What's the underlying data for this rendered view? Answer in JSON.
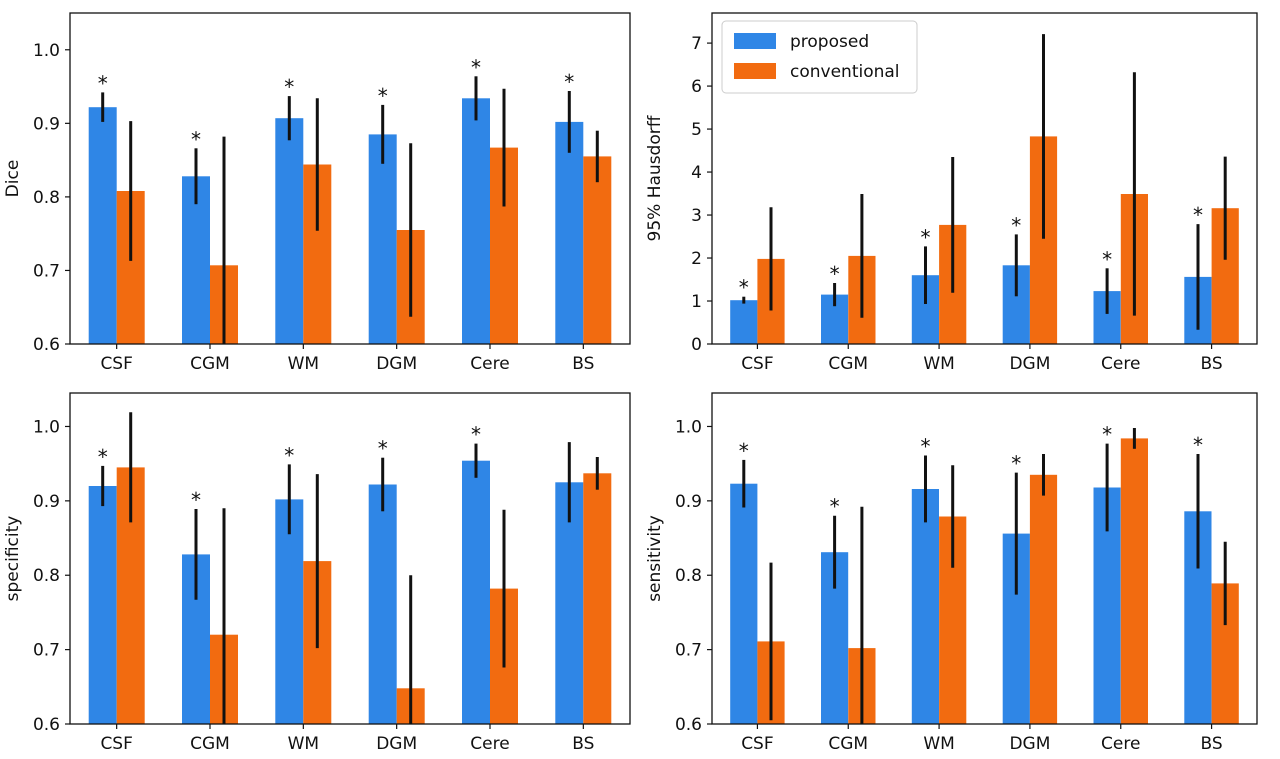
{
  "colors": {
    "proposed": "#2f86e6",
    "conventional": "#f26b10",
    "errorbar": "#111111",
    "frame": "#111111"
  },
  "legend": {
    "placement": "upper-left",
    "entries": [
      "proposed",
      "conventional"
    ]
  },
  "chart_data": [
    {
      "type": "bar",
      "title": "",
      "xlabel": "",
      "ylabel": "Dice",
      "ylim": [
        0.6,
        1.05
      ],
      "yticks": [
        0.6,
        0.7,
        0.8,
        0.9,
        1.0
      ],
      "ytick_labels": [
        "0.6",
        "0.7",
        "0.8",
        "0.9",
        "1.0"
      ],
      "categories": [
        "CSF",
        "CGM",
        "WM",
        "DGM",
        "Cere",
        "BS"
      ],
      "series": [
        {
          "name": "proposed",
          "values": [
            0.922,
            0.828,
            0.907,
            0.885,
            0.934,
            0.902
          ],
          "errors": [
            0.02,
            0.038,
            0.03,
            0.04,
            0.03,
            0.042
          ]
        },
        {
          "name": "conventional",
          "values": [
            0.808,
            0.707,
            0.844,
            0.755,
            0.867,
            0.855
          ],
          "errors": [
            0.095,
            0.175,
            0.09,
            0.118,
            0.08,
            0.035
          ]
        }
      ],
      "significant": [
        true,
        true,
        true,
        true,
        true,
        true
      ],
      "grid": false
    },
    {
      "type": "bar",
      "title": "",
      "xlabel": "",
      "ylabel": "95% Hausdorff",
      "ylim": [
        0,
        7.7
      ],
      "yticks": [
        0,
        1,
        2,
        3,
        4,
        5,
        6,
        7
      ],
      "ytick_labels": [
        "0",
        "1",
        "2",
        "3",
        "4",
        "5",
        "6",
        "7"
      ],
      "categories": [
        "CSF",
        "CGM",
        "WM",
        "DGM",
        "Cere",
        "BS"
      ],
      "series": [
        {
          "name": "proposed",
          "values": [
            1.02,
            1.15,
            1.6,
            1.83,
            1.23,
            1.56
          ],
          "errors": [
            0.08,
            0.27,
            0.67,
            0.72,
            0.53,
            1.23
          ]
        },
        {
          "name": "conventional",
          "values": [
            1.98,
            2.05,
            2.77,
            4.83,
            3.49,
            3.16
          ],
          "errors": [
            1.2,
            1.44,
            1.58,
            2.38,
            2.83,
            1.2
          ]
        }
      ],
      "significant": [
        true,
        true,
        true,
        true,
        true,
        true
      ],
      "grid": false
    },
    {
      "type": "bar",
      "title": "",
      "xlabel": "",
      "ylabel": "specificity",
      "ylim": [
        0.6,
        1.045
      ],
      "yticks": [
        0.6,
        0.7,
        0.8,
        0.9,
        1.0
      ],
      "ytick_labels": [
        "0.6",
        "0.7",
        "0.8",
        "0.9",
        "1.0"
      ],
      "categories": [
        "CSF",
        "CGM",
        "WM",
        "DGM",
        "Cere",
        "BS"
      ],
      "series": [
        {
          "name": "proposed",
          "values": [
            0.92,
            0.828,
            0.902,
            0.922,
            0.954,
            0.925
          ],
          "errors": [
            0.027,
            0.061,
            0.047,
            0.036,
            0.023,
            0.054
          ]
        },
        {
          "name": "conventional",
          "values": [
            0.945,
            0.72,
            0.819,
            0.648,
            0.782,
            0.937
          ],
          "errors": [
            0.074,
            0.17,
            0.117,
            0.152,
            0.106,
            0.022
          ]
        }
      ],
      "significant": [
        true,
        true,
        true,
        true,
        true,
        false
      ],
      "grid": false
    },
    {
      "type": "bar",
      "title": "",
      "xlabel": "",
      "ylabel": "sensitivity",
      "ylim": [
        0.6,
        1.045
      ],
      "yticks": [
        0.6,
        0.7,
        0.8,
        0.9,
        1.0
      ],
      "ytick_labels": [
        "0.6",
        "0.7",
        "0.8",
        "0.9",
        "1.0"
      ],
      "categories": [
        "CSF",
        "CGM",
        "WM",
        "DGM",
        "Cere",
        "BS"
      ],
      "series": [
        {
          "name": "proposed",
          "values": [
            0.923,
            0.831,
            0.916,
            0.856,
            0.918,
            0.886
          ],
          "errors": [
            0.032,
            0.049,
            0.045,
            0.082,
            0.059,
            0.077
          ]
        },
        {
          "name": "conventional",
          "values": [
            0.711,
            0.702,
            0.879,
            0.935,
            0.984,
            0.789
          ],
          "errors": [
            0.106,
            0.19,
            0.069,
            0.028,
            0.014,
            0.056
          ]
        }
      ],
      "significant": [
        true,
        true,
        true,
        true,
        true,
        true
      ],
      "grid": false
    }
  ]
}
